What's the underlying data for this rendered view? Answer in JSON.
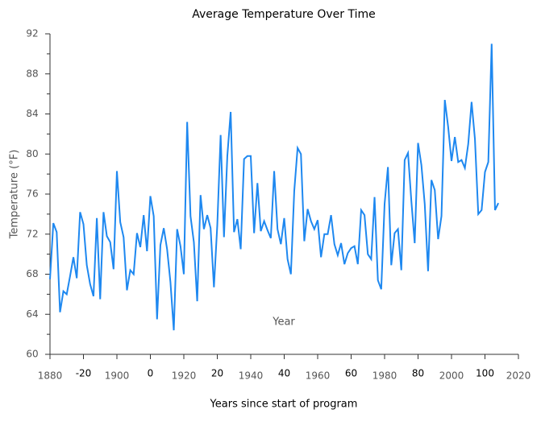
{
  "chart_data": {
    "type": "line",
    "title": "Average Temperature Over Time",
    "ylabel": "Temperature (°F)",
    "xlabel": "Year",
    "x2label": "Years since start of program",
    "x": [
      1880,
      1881,
      1882,
      1883,
      1884,
      1885,
      1886,
      1887,
      1888,
      1889,
      1890,
      1891,
      1892,
      1893,
      1894,
      1895,
      1896,
      1897,
      1898,
      1899,
      1900,
      1901,
      1902,
      1903,
      1904,
      1905,
      1906,
      1907,
      1908,
      1909,
      1910,
      1911,
      1912,
      1913,
      1914,
      1915,
      1916,
      1917,
      1918,
      1919,
      1920,
      1921,
      1922,
      1923,
      1924,
      1925,
      1926,
      1927,
      1928,
      1929,
      1930,
      1931,
      1932,
      1933,
      1934,
      1935,
      1936,
      1937,
      1938,
      1939,
      1940,
      1941,
      1942,
      1943,
      1944,
      1945,
      1946,
      1947,
      1948,
      1949,
      1950,
      1951,
      1952,
      1953,
      1954,
      1955,
      1956,
      1957,
      1958,
      1959,
      1960,
      1961,
      1962,
      1963,
      1964,
      1965,
      1966,
      1967,
      1968,
      1969,
      1970,
      1971,
      1972,
      1973,
      1974,
      1975,
      1976,
      1977,
      1978,
      1979,
      1980,
      1981,
      1982,
      1983,
      1984,
      1985,
      1986,
      1987,
      1988,
      1989,
      1990,
      1991,
      1992,
      1993,
      1994,
      1995,
      1996,
      1997,
      1998,
      1999,
      2000,
      2001,
      2002,
      2003,
      2004,
      2005,
      2006,
      2007,
      2008,
      2009,
      2010,
      2011,
      2012,
      2013,
      2014
    ],
    "series": [
      {
        "name": "Temperature",
        "color": "#1e88f0",
        "values": [
          67.5,
          73.1,
          72.2,
          64.2,
          66.3,
          66.0,
          67.8,
          69.7,
          67.6,
          74.2,
          73.0,
          68.9,
          67.0,
          65.8,
          73.6,
          65.5,
          74.2,
          71.8,
          71.2,
          68.5,
          78.3,
          73.2,
          71.7,
          66.4,
          68.4,
          68.0,
          72.1,
          70.7,
          73.9,
          70.3,
          75.8,
          73.8,
          63.5,
          70.9,
          72.6,
          70.5,
          67.2,
          62.4,
          72.5,
          70.8,
          68.0,
          83.2,
          73.8,
          71.2,
          65.3,
          75.9,
          72.5,
          73.9,
          72.6,
          66.7,
          72.9,
          81.9,
          71.7,
          79.8,
          84.2,
          72.2,
          73.5,
          70.5,
          79.5,
          79.8,
          79.8,
          72.1,
          77.1,
          72.3,
          73.3,
          72.4,
          71.6,
          78.3,
          72.5,
          71.0,
          73.6,
          69.5,
          68.0,
          76.3,
          80.6,
          80.0,
          71.3,
          74.5,
          73.3,
          72.5,
          73.4,
          69.7,
          72.0,
          72.0,
          73.9,
          71.0,
          69.9,
          71.1,
          69.0,
          70.1,
          70.6,
          70.8,
          69.0,
          74.4,
          73.9,
          70.0,
          69.5,
          75.7,
          67.4,
          66.5,
          75.0,
          78.7,
          68.9,
          72.1,
          72.5,
          68.4,
          79.4,
          80.1,
          75.3,
          71.1,
          81.1,
          78.9,
          75.0,
          68.3,
          77.4,
          76.4,
          71.5,
          73.8,
          85.4,
          82.7,
          79.3,
          81.7,
          79.2,
          79.4,
          78.6,
          81.0,
          85.2,
          81.5,
          74.0,
          74.4,
          78.2,
          79.2,
          91.0,
          74.4,
          75.1
        ]
      }
    ],
    "xlim": [
      1880,
      2020
    ],
    "xticks": [
      1880,
      1900,
      1920,
      1940,
      1960,
      1980,
      2000,
      2020
    ],
    "x2ticks": [
      {
        "value": 1890,
        "label": "-20"
      },
      {
        "value": 1910,
        "label": "0"
      },
      {
        "value": 1930,
        "label": "20"
      },
      {
        "value": 1950,
        "label": "40"
      },
      {
        "value": 1970,
        "label": "60"
      },
      {
        "value": 1990,
        "label": "80"
      },
      {
        "value": 2010,
        "label": "100"
      }
    ],
    "ylim": [
      60,
      92
    ],
    "yticks": [
      60,
      64,
      68,
      72,
      76,
      80,
      84,
      88,
      92
    ],
    "yminorticks": [
      62,
      66,
      70,
      74,
      78,
      82,
      86,
      90
    ],
    "grid": false
  }
}
